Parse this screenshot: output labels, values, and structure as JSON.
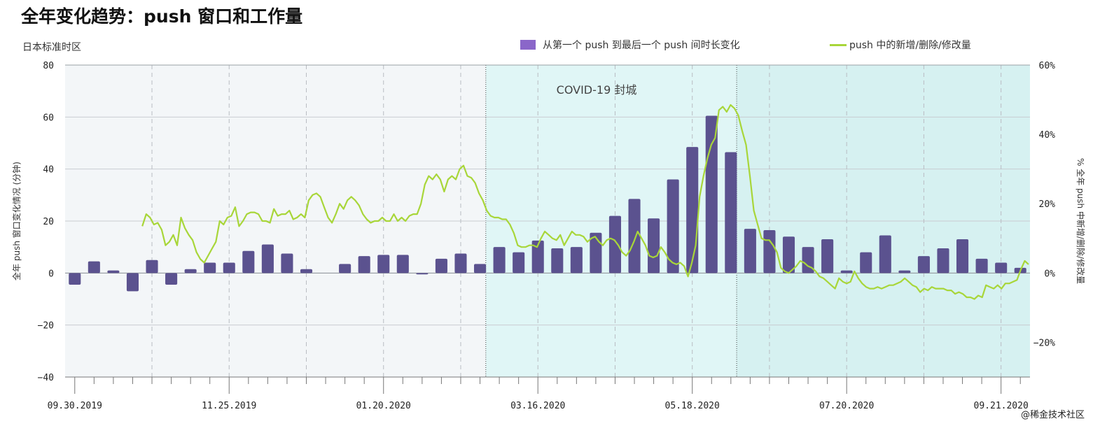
{
  "title": "全年变化趋势：push 窗口和工作量",
  "subtitle": "日本标准时区",
  "watermark": "@稀金技术社区",
  "colors": {
    "bar": "#5b528f",
    "legend_bar": "#8a66c9",
    "line": "#a8d639",
    "plot_bg": "#f3f6f8",
    "covid_bg": "#e0f6f6",
    "covid_dark_bg": "#d6f1f1"
  },
  "chart_data": {
    "type": "bar+line",
    "y_left": {
      "label": "全年 push 窗口变化情况 (分钟)",
      "ticks": [
        80,
        60,
        40,
        20,
        0,
        -20,
        -40
      ],
      "range": [
        -40,
        80
      ]
    },
    "y_right": {
      "label": "% 全年 push 中新增/删除/修改量",
      "ticks": [
        "60%",
        "40%",
        "20%",
        "0%",
        "-20%"
      ],
      "range": [
        -30,
        60
      ]
    },
    "x_ticks": [
      "09.30.2019",
      "11.25.2019",
      "01.20.2020",
      "03.16.2020",
      "05.18.2020",
      "07.20.2020",
      "09.21.2020"
    ],
    "annotation": "COVID-19 封城",
    "series": [
      {
        "name": "从第一个 push 到最后一个 push 间时长变化",
        "kind": "bar",
        "values": [
          -4.5,
          4.5,
          1,
          -7,
          5,
          -4.5,
          1.5,
          4,
          4,
          8.5,
          11,
          7.5,
          1.5,
          null,
          3.5,
          6.5,
          7,
          7,
          -0.5,
          5.5,
          7.5,
          3.5,
          10,
          8,
          12.5,
          9.5,
          10,
          15.5,
          22,
          28.5,
          21,
          36,
          48.5,
          60.5,
          46.5,
          17,
          16.5,
          14,
          10,
          13,
          1,
          8,
          14.5,
          1,
          6.5,
          9.5,
          13,
          5.5,
          4,
          2
        ]
      },
      {
        "name": "push 中的新增/删除/修改量",
        "kind": "line",
        "x_start": 4,
        "x_end": 50,
        "values": [
          13.5,
          17,
          16,
          14,
          14.5,
          12.5,
          8,
          9,
          11,
          8,
          16,
          13,
          11,
          9.5,
          6,
          4,
          3,
          5,
          7,
          9,
          15,
          14,
          16,
          16.5,
          19,
          13.5,
          15,
          17,
          17.5,
          17.5,
          17,
          15,
          15,
          14.5,
          18.5,
          16.5,
          17,
          17,
          18,
          15.5,
          16,
          17,
          16,
          21,
          22.5,
          23,
          22,
          19,
          16,
          14.5,
          17,
          20,
          18.5,
          21,
          22,
          21,
          19.5,
          17,
          15.5,
          14.5,
          15,
          15,
          16,
          15,
          15,
          17,
          15,
          16,
          15,
          16.5,
          17,
          17,
          20,
          25.5,
          28,
          27,
          28.5,
          27,
          23.5,
          27,
          28,
          27,
          30,
          31,
          28,
          27.5,
          26,
          23,
          21,
          18,
          16.5,
          16,
          16,
          15.5,
          15.5,
          14,
          11.5,
          8,
          7.5,
          7.5,
          8,
          8,
          7.5,
          10,
          12,
          11,
          10,
          9.5,
          11,
          8,
          10,
          12,
          11,
          11,
          10.5,
          9,
          10,
          10.5,
          9,
          8,
          9.5,
          10,
          9.5,
          8,
          6,
          5,
          6.5,
          9,
          12,
          10,
          8,
          5,
          4.5,
          5,
          7.5,
          6,
          4,
          3,
          2.5,
          3,
          2,
          -1,
          3,
          8,
          22,
          28,
          33,
          37,
          39,
          47,
          48,
          46.5,
          48.5,
          47.5,
          45.5,
          41,
          37,
          28,
          18,
          14,
          10,
          9.5,
          9.5,
          8,
          6,
          1.5,
          0.5,
          0,
          1,
          2,
          3.5,
          3,
          2,
          1.5,
          0.5,
          -1,
          -1.5,
          -2.5,
          -3.5,
          -4.5,
          -1.5,
          -2.5,
          -3,
          -2.5,
          0.5,
          -1.5,
          -3,
          -4,
          -4.5,
          -4.5,
          -4,
          -4.5,
          -4,
          -3.5,
          -3.5,
          -3,
          -2.5,
          -1.5,
          -2.5,
          -3.5,
          -4,
          -5.5,
          -4.5,
          -5,
          -4,
          -4.5,
          -4.5,
          -4.5,
          -5,
          -5,
          -6,
          -5.5,
          -6,
          -7,
          -7,
          -7.5,
          -6.5,
          -7,
          -3.5,
          -4,
          -4.5,
          -3.5,
          -4.5,
          -3,
          -3,
          -2.5,
          -2,
          1,
          3.5,
          2.5
        ]
      }
    ]
  }
}
